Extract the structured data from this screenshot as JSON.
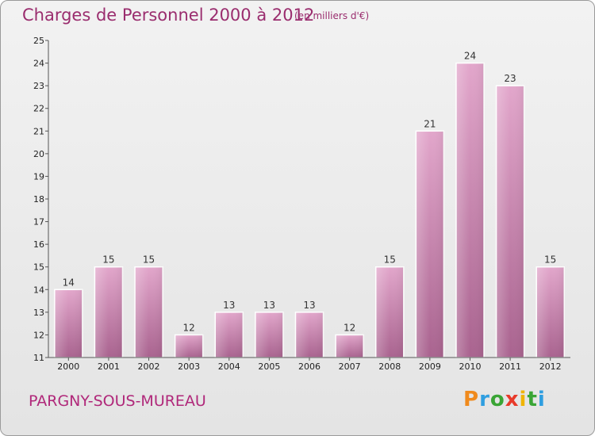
{
  "header": {
    "title": "Charges de Personnel 2000 à 2012",
    "subtitle": "(en milliers d'€)"
  },
  "footer": {
    "commune": "PARGNY-SOUS-MUREAU",
    "logo": [
      "P",
      "r",
      "o",
      "x",
      "i",
      "t",
      "i"
    ]
  },
  "colors": {
    "accent": "#9a2d6e",
    "bar_top": "#e2a6cb",
    "bar_bottom": "#a9638f"
  },
  "chart_data": {
    "type": "bar",
    "title": "Charges de Personnel 2000 à 2012",
    "subtitle": "(en milliers d'€)",
    "categories": [
      "2000",
      "2001",
      "2002",
      "2003",
      "2004",
      "2005",
      "2006",
      "2007",
      "2008",
      "2009",
      "2010",
      "2011",
      "2012"
    ],
    "values": [
      14,
      15,
      15,
      12,
      13,
      13,
      13,
      12,
      15,
      21,
      24,
      23,
      15
    ],
    "ylim": [
      11,
      25
    ],
    "yticks": [
      11,
      12,
      13,
      14,
      15,
      16,
      17,
      18,
      19,
      20,
      21,
      22,
      23,
      24,
      25
    ],
    "xlabel": "",
    "ylabel": "",
    "grid": false
  }
}
